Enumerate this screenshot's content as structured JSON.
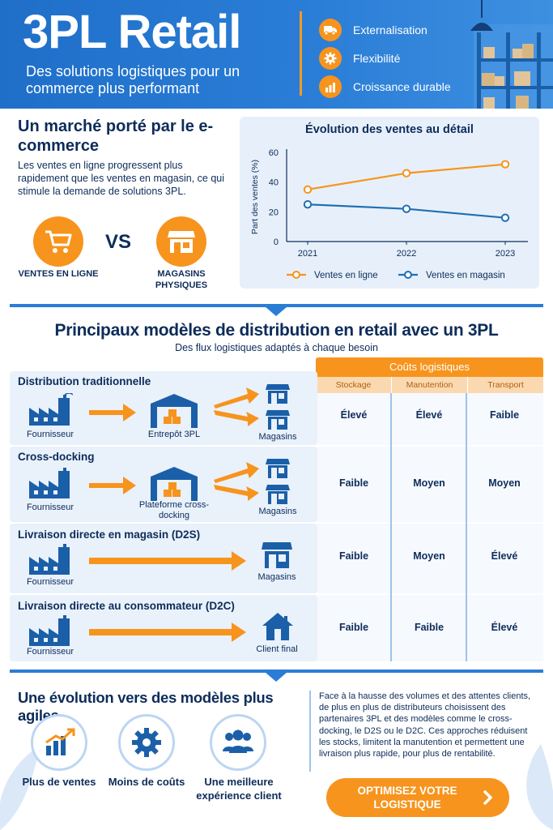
{
  "header": {
    "title": "3PL Retail",
    "subtitle": "Des solutions logistiques pour un commerce plus performant",
    "features": [
      {
        "label": "Externalisation",
        "icon": "truck-icon"
      },
      {
        "label": "Flexibilité",
        "icon": "gear-icon"
      },
      {
        "label": "Croissance durable",
        "icon": "bar-chart-icon"
      }
    ]
  },
  "market": {
    "title": "Un marché porté par le e-commerce",
    "text": "Les ventes en ligne progressent plus rapidement que les ventes en magasin, ce qui stimule la demande de solutions 3PL.",
    "left_label": "VENTES EN LIGNE",
    "right_label": "MAGASINS PHYSIQUES",
    "vs": "VS"
  },
  "chart_data": {
    "type": "line",
    "title": "Évolution des ventes au détail",
    "ylabel": "Part des ventes (%)",
    "xlabel": "",
    "x": [
      "2021",
      "2022",
      "2023"
    ],
    "ylim": [
      0,
      60
    ],
    "yticks": [
      0,
      20,
      40,
      60
    ],
    "grid": false,
    "legend": "bottom",
    "series": [
      {
        "name": "Ventes en ligne",
        "values": [
          35,
          46,
          52
        ],
        "color": "#f7941d"
      },
      {
        "name": "Ventes en magasin",
        "values": [
          25,
          22,
          16
        ],
        "color": "#1f6fb5"
      }
    ]
  },
  "models": {
    "title": "Principaux modèles de distribution en retail avec un 3PL",
    "subtitle": "Des flux logistiques adaptés à chaque besoin",
    "cost_header": "Coûts logistiques",
    "cost_columns": [
      "Stockage",
      "Manutention",
      "Transport"
    ],
    "rows": [
      {
        "title": "Distribution traditionnelle",
        "from": "Fournisseur",
        "mid": "Entrepôt 3PL",
        "to": "Magasins",
        "costs": [
          "Élevé",
          "Élevé",
          "Faible"
        ]
      },
      {
        "title": "Cross-docking",
        "from": "Fournisseur",
        "mid": "Plateforme cross-docking",
        "to": "Magasins",
        "costs": [
          "Faible",
          "Moyen",
          "Moyen"
        ]
      },
      {
        "title": "Livraison directe en magasin (D2S)",
        "from": "Fournisseur",
        "to": "Magasins",
        "costs": [
          "Faible",
          "Moyen",
          "Élevé"
        ]
      },
      {
        "title": "Livraison directe au consommateur (D2C)",
        "from": "Fournisseur",
        "to": "Client final",
        "costs": [
          "Faible",
          "Faible",
          "Élevé"
        ]
      }
    ]
  },
  "evolution": {
    "title": "Une évolution vers des modèles plus agiles",
    "benefits": [
      {
        "label": "Plus de ventes",
        "icon": "growth-chart-icon"
      },
      {
        "label": "Moins de coûts",
        "icon": "gear-icon"
      },
      {
        "label": "Une meilleure expérience client",
        "icon": "people-icon"
      }
    ],
    "text": "Face à la hausse des volumes et des attentes clients, de plus en plus de distributeurs choisissent des partenaires 3PL et des modèles comme le cross-docking, le D2S ou le D2C. Ces approches réduisent les stocks, limitent la manutention et permettent une livraison plus rapide, pour plus de rentabilité.",
    "cta": "OPTIMISEZ VOTRE LOGISTIQUE"
  },
  "colors": {
    "primary": "#1f6fc9",
    "accent": "#f7941d",
    "navy": "#0d2c5a",
    "light": "#e9f1fb"
  }
}
